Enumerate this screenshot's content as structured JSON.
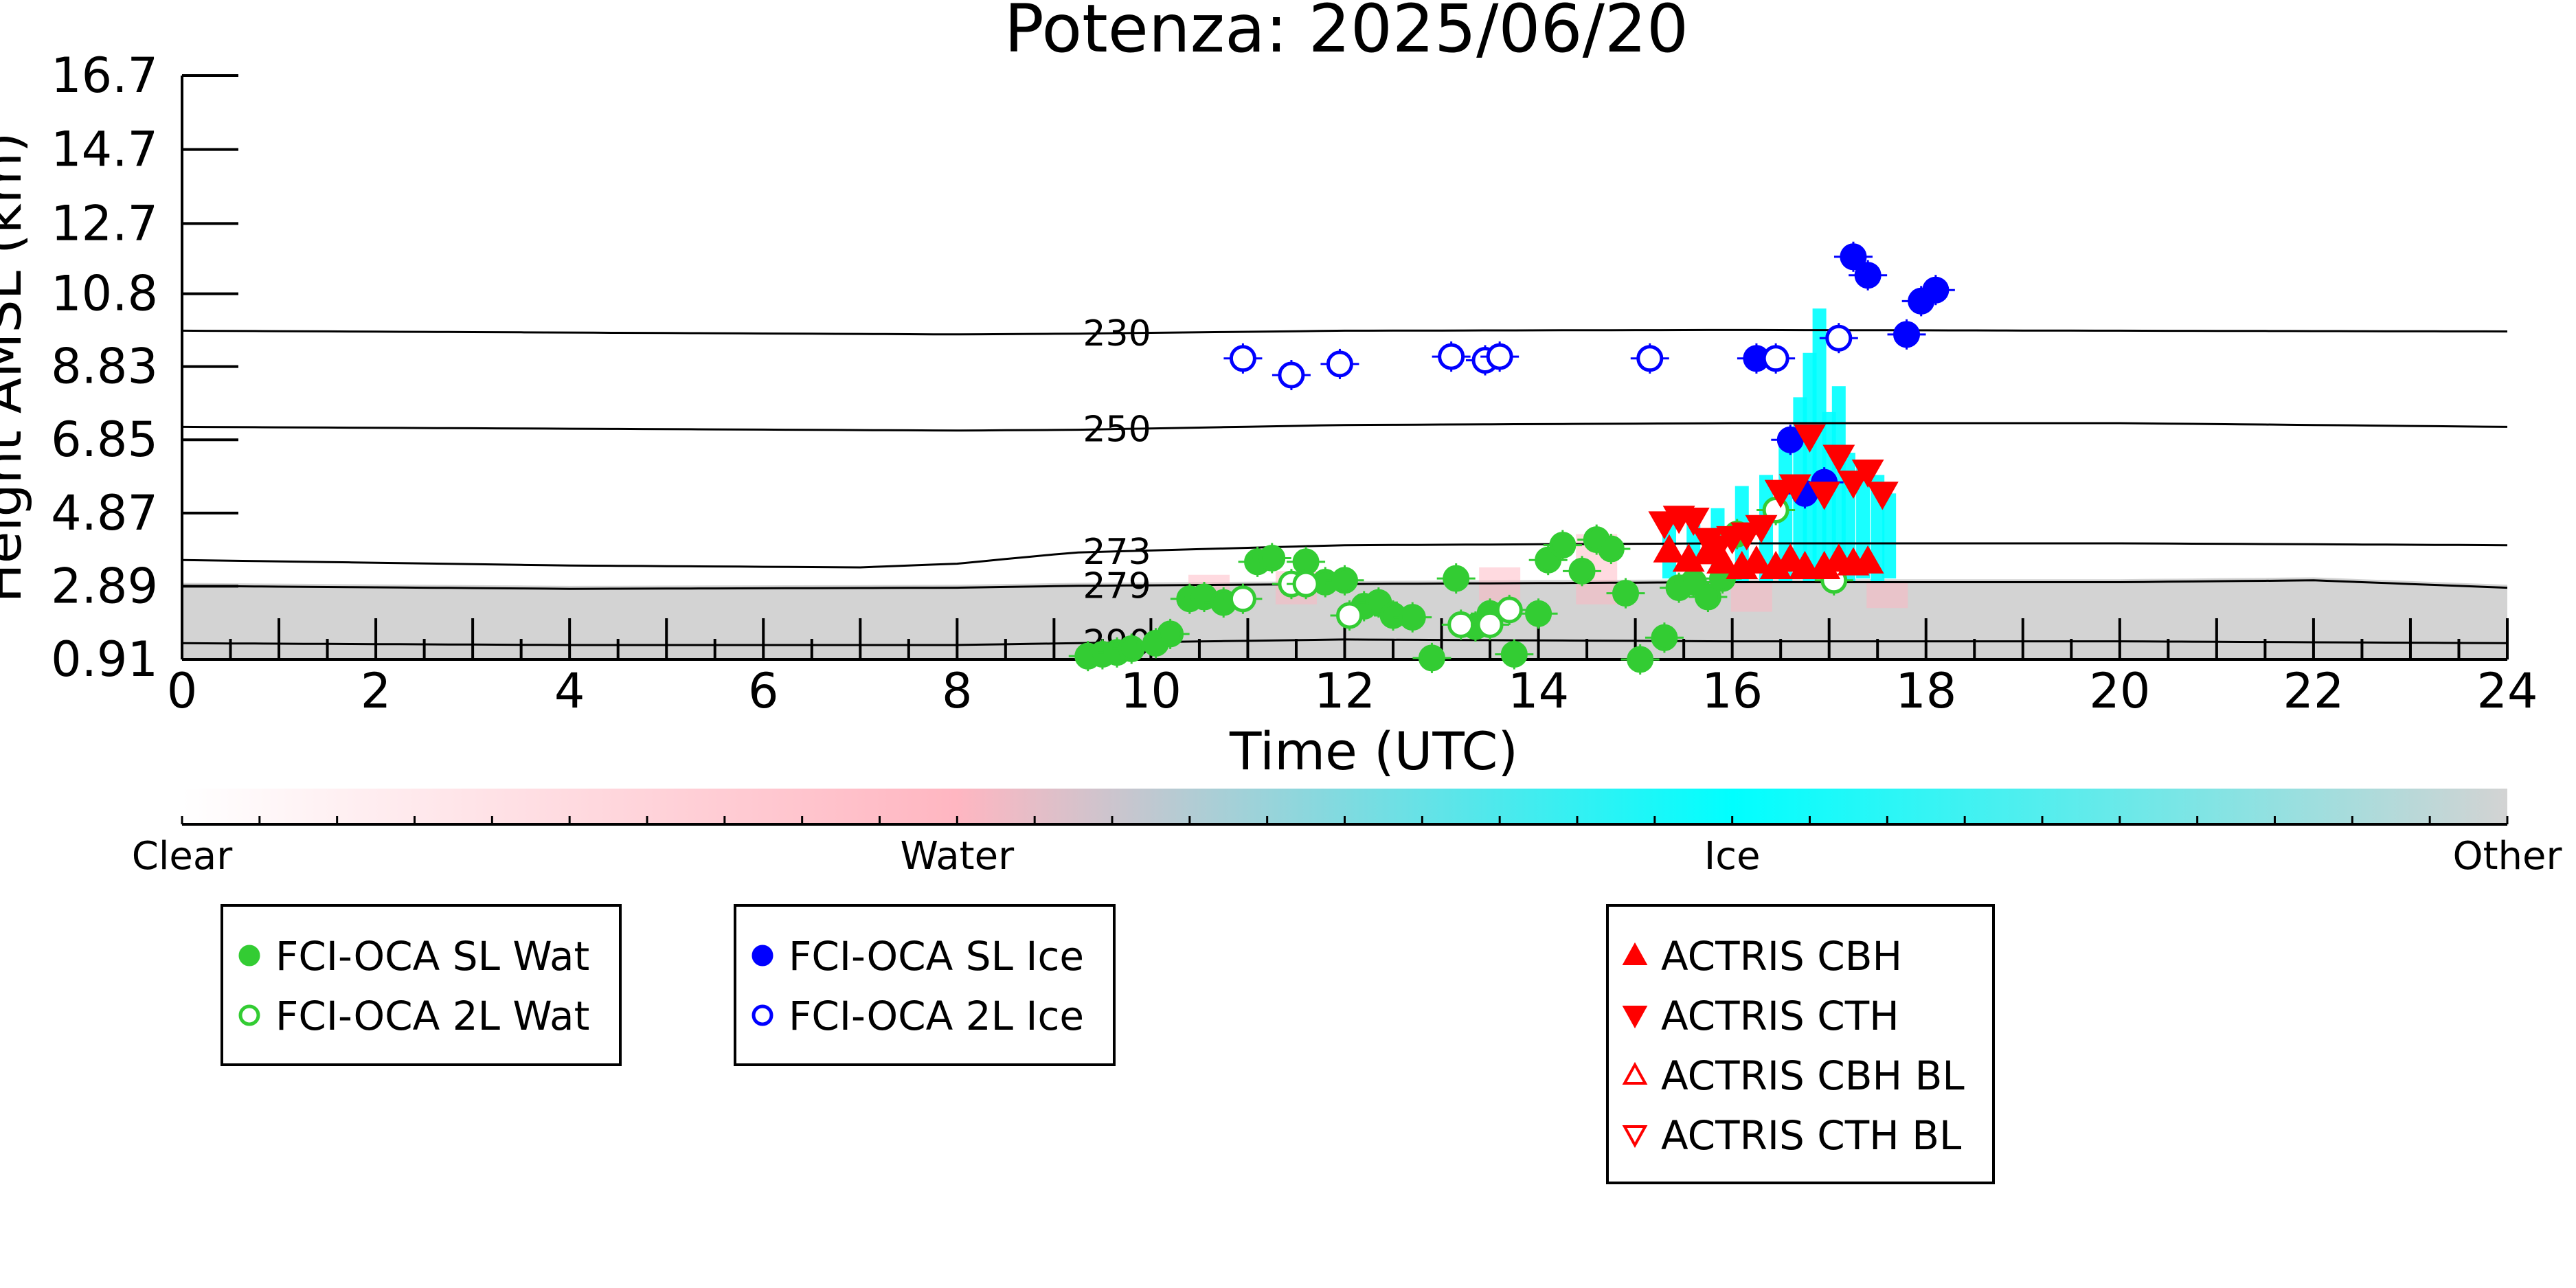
{
  "chart_data": {
    "type": "scatter",
    "title": "Potenza: 2025/06/20",
    "xlabel": "Time (UTC)",
    "ylabel": "Height AMSL (km)",
    "xlim": [
      0,
      24
    ],
    "ylim": [
      0.91,
      16.7
    ],
    "x_ticks": [
      "0",
      "2",
      "4",
      "6",
      "8",
      "10",
      "12",
      "14",
      "16",
      "18",
      "20",
      "22",
      "24"
    ],
    "y_ticks": [
      "0.91",
      "2.89",
      "4.87",
      "6.85",
      "8.83",
      "10.8",
      "12.7",
      "14.7",
      "16.7"
    ],
    "isotherm_labels": [
      "230",
      "250",
      "273",
      "279",
      "290"
    ],
    "isotherms": [
      {
        "label": "230",
        "x": [
          0,
          4,
          8,
          9.2,
          12,
          16,
          20,
          24
        ],
        "y": [
          9.8,
          9.75,
          9.7,
          9.72,
          9.8,
          9.82,
          9.8,
          9.78
        ]
      },
      {
        "label": "250",
        "x": [
          0,
          4,
          8,
          9.2,
          12,
          16,
          20,
          24
        ],
        "y": [
          7.2,
          7.15,
          7.1,
          7.12,
          7.25,
          7.3,
          7.3,
          7.2
        ]
      },
      {
        "label": "273",
        "x": [
          0,
          4,
          7,
          8,
          9.2,
          12,
          16,
          20,
          24
        ],
        "y": [
          3.6,
          3.45,
          3.4,
          3.5,
          3.8,
          4.0,
          4.05,
          4.05,
          4.0
        ]
      },
      {
        "label": "279",
        "x": [
          0,
          4,
          8,
          9.2,
          12,
          16,
          20,
          22,
          24
        ],
        "y": [
          2.9,
          2.82,
          2.85,
          2.9,
          2.95,
          3.0,
          3.0,
          3.05,
          2.85
        ]
      },
      {
        "label": "290",
        "x": [
          0,
          4,
          8,
          9.2,
          12,
          16,
          20,
          24
        ],
        "y": [
          1.35,
          1.3,
          1.3,
          1.35,
          1.45,
          1.4,
          1.4,
          1.35
        ]
      }
    ],
    "colorbar": {
      "labels": [
        "Clear",
        "Water",
        "Ice",
        "Other"
      ],
      "colors": [
        "#ffffff",
        "#ffb6c1",
        "#00ffff",
        "#d3d3d3"
      ]
    },
    "series": [
      {
        "name": "FCI-OCA SL Wat",
        "color": "#33cc33",
        "marker": "circle-filled",
        "x": [
          9.35,
          9.5,
          9.65,
          9.8,
          10.05,
          10.2,
          10.4,
          10.55,
          10.75,
          11.1,
          11.25,
          11.6,
          11.8,
          12.0,
          12.2,
          12.35,
          12.5,
          12.7,
          12.9,
          13.15,
          13.35,
          13.5,
          13.75,
          14.0,
          14.1,
          14.25,
          14.45,
          14.6,
          14.75,
          14.9,
          15.05,
          15.3,
          15.45,
          15.6,
          15.75,
          15.9,
          16.05
        ],
        "y": [
          1.0,
          1.05,
          1.1,
          1.2,
          1.35,
          1.6,
          2.55,
          2.6,
          2.45,
          3.55,
          3.65,
          3.55,
          3.0,
          3.05,
          2.35,
          2.45,
          2.1,
          2.05,
          0.95,
          3.1,
          1.8,
          2.15,
          1.05,
          2.15,
          3.6,
          4.0,
          3.3,
          4.15,
          3.9,
          2.7,
          0.91,
          1.5,
          2.85,
          3.0,
          2.6,
          3.1,
          4.3
        ]
      },
      {
        "name": "FCI-OCA 2L Wat",
        "color": "#33cc33",
        "marker": "circle-open",
        "x": [
          10.95,
          11.45,
          11.6,
          12.05,
          13.2,
          13.5,
          13.7,
          16.45,
          17.05
        ],
        "y": [
          2.55,
          2.95,
          2.95,
          2.1,
          1.85,
          1.85,
          2.25,
          4.95,
          3.05
        ]
      },
      {
        "name": "FCI-OCA SL Ice",
        "color": "#0000ff",
        "marker": "circle-filled",
        "x": [
          16.25,
          16.6,
          16.75,
          16.95,
          17.25,
          17.4,
          17.8,
          17.95,
          18.1
        ],
        "y": [
          9.05,
          6.85,
          5.4,
          5.7,
          11.8,
          11.3,
          9.7,
          10.6,
          10.9
        ]
      },
      {
        "name": "FCI-OCA 2L Ice",
        "color": "#0000ff",
        "marker": "circle-open",
        "x": [
          10.95,
          11.45,
          11.95,
          13.1,
          13.45,
          13.6,
          15.15,
          16.45,
          17.1
        ],
        "y": [
          9.05,
          8.6,
          8.9,
          9.1,
          9.0,
          9.1,
          9.05,
          9.05,
          9.6
        ]
      },
      {
        "name": "ACTRIS CBH",
        "color": "#ff0000",
        "marker": "triangle-up-filled",
        "x": [
          15.35,
          15.55,
          15.75,
          15.9,
          16.1,
          16.25,
          16.45,
          16.6,
          16.75,
          16.95,
          17.1,
          17.25,
          17.4
        ],
        "y": [
          3.85,
          3.6,
          3.8,
          3.55,
          3.4,
          3.55,
          3.4,
          3.6,
          3.4,
          3.4,
          3.6,
          3.5,
          3.55
        ]
      },
      {
        "name": "ACTRIS CTH",
        "color": "#ff0000",
        "marker": "triangle-down-filled",
        "x": [
          15.3,
          15.45,
          15.6,
          15.75,
          15.85,
          16.0,
          16.15,
          16.3,
          16.5,
          16.65,
          16.8,
          16.95,
          17.1,
          17.25,
          17.4,
          17.55
        ],
        "y": [
          4.6,
          4.75,
          4.7,
          4.15,
          3.95,
          4.2,
          4.3,
          4.5,
          5.45,
          5.6,
          6.95,
          5.4,
          6.4,
          5.7,
          6.0,
          5.4
        ]
      },
      {
        "name": "ACTRIS CBH BL",
        "color": "#ff0000",
        "marker": "triangle-up-open",
        "x": [],
        "y": []
      },
      {
        "name": "ACTRIS CTH BL",
        "color": "#ff0000",
        "marker": "triangle-down-open",
        "x": [],
        "y": []
      }
    ]
  }
}
